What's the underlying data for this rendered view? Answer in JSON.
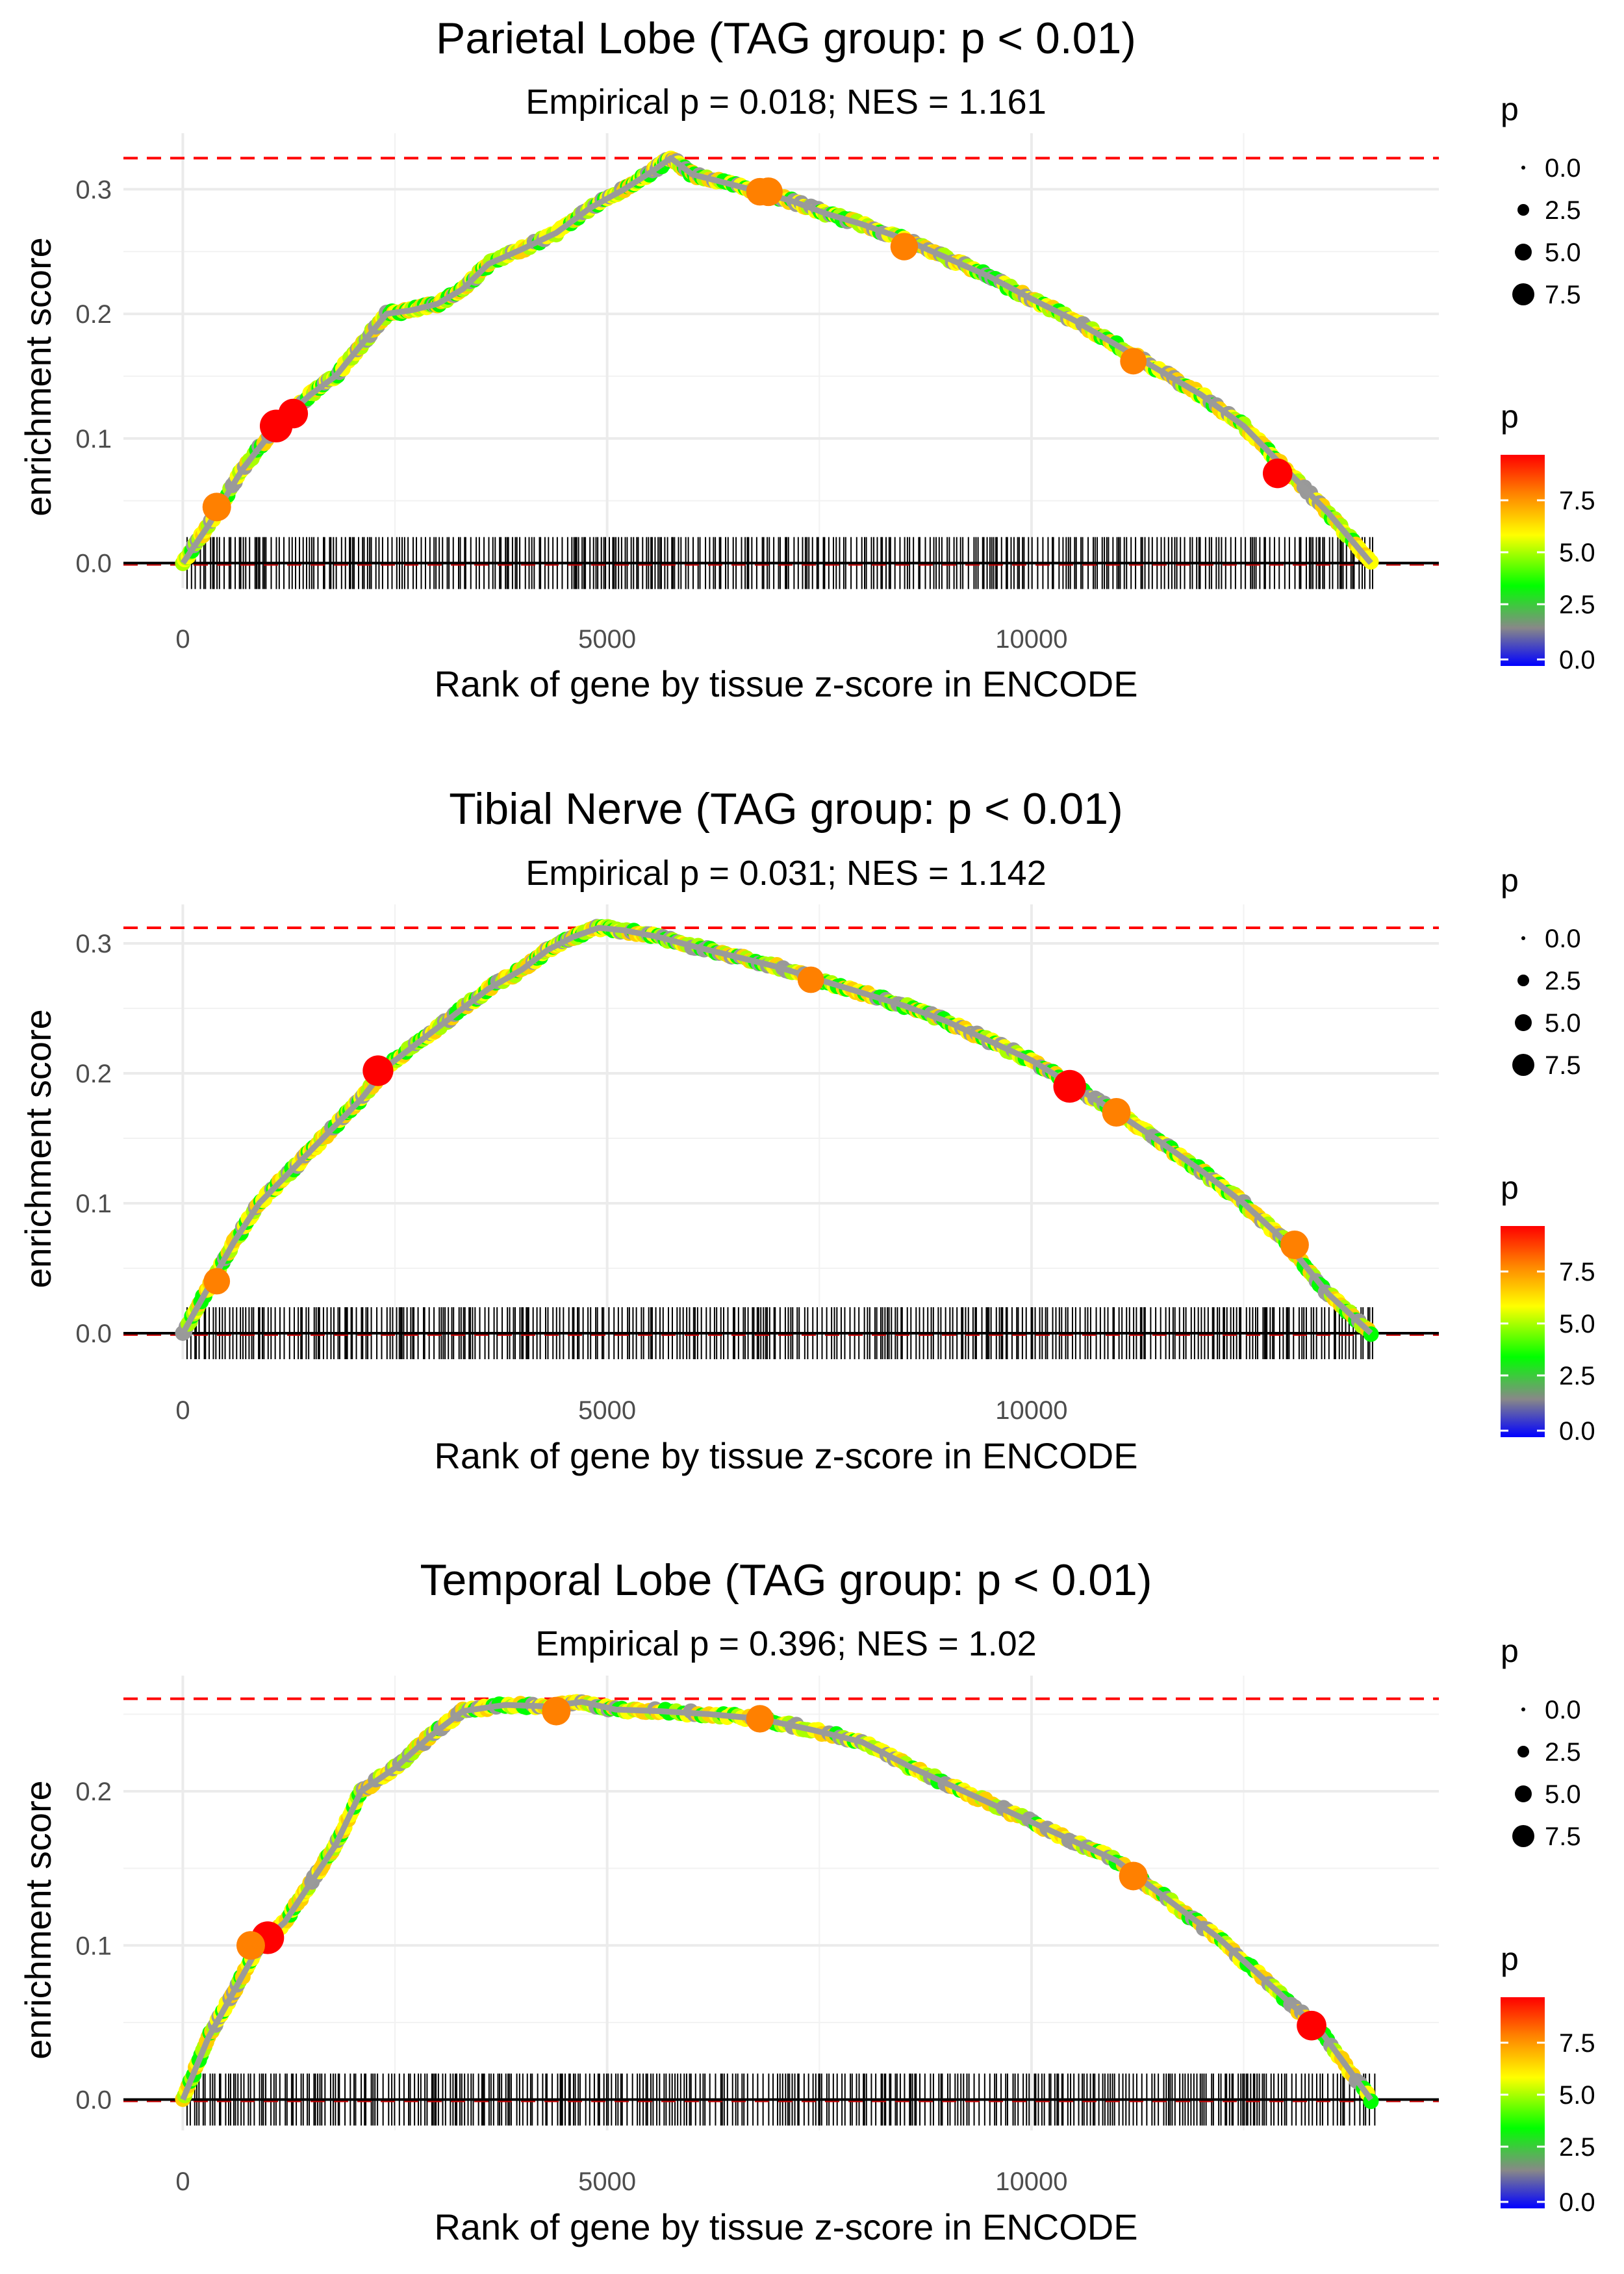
{
  "chart_data": [
    {
      "type": "line",
      "title": "Parietal Lobe (TAG group: p < 0.01)",
      "subtitle": "Empirical p = 0.018; NES = 1.161",
      "xlabel": "Rank of gene by tissue z-score in ENCODE",
      "ylabel": "enrichment score",
      "xlim": [
        -700,
        14800
      ],
      "ylim": [
        -0.02,
        0.345
      ],
      "x_ticks": [
        0,
        5000,
        10000
      ],
      "y_ticks": [
        0.0,
        0.1,
        0.2,
        0.3
      ],
      "max_es": 0.325,
      "grid": true,
      "x_end": 14050,
      "curve": [
        [
          0,
          0
        ],
        [
          300,
          0.03
        ],
        [
          700,
          0.075
        ],
        [
          1100,
          0.11
        ],
        [
          1500,
          0.135
        ],
        [
          1800,
          0.15
        ],
        [
          2100,
          0.175
        ],
        [
          2400,
          0.2
        ],
        [
          2700,
          0.203
        ],
        [
          3000,
          0.208
        ],
        [
          3300,
          0.22
        ],
        [
          3600,
          0.24
        ],
        [
          4000,
          0.252
        ],
        [
          4400,
          0.265
        ],
        [
          4800,
          0.285
        ],
        [
          5200,
          0.3
        ],
        [
          5500,
          0.313
        ],
        [
          5750,
          0.325
        ],
        [
          6000,
          0.312
        ],
        [
          6400,
          0.305
        ],
        [
          6800,
          0.298
        ],
        [
          7200,
          0.29
        ],
        [
          7600,
          0.28
        ],
        [
          8000,
          0.272
        ],
        [
          8500,
          0.26
        ],
        [
          9000,
          0.245
        ],
        [
          9500,
          0.23
        ],
        [
          10000,
          0.212
        ],
        [
          10500,
          0.195
        ],
        [
          11000,
          0.175
        ],
        [
          11500,
          0.155
        ],
        [
          12000,
          0.135
        ],
        [
          12500,
          0.11
        ],
        [
          13000,
          0.075
        ],
        [
          13500,
          0.04
        ],
        [
          14000,
          0
        ]
      ],
      "highlight_points": [
        [
          1100,
          0.11,
          9.5
        ],
        [
          1300,
          0.12,
          8.0
        ],
        [
          400,
          0.045,
          7.5
        ],
        [
          6800,
          0.298,
          7.0
        ],
        [
          8500,
          0.254,
          7.0
        ],
        [
          12900,
          0.072,
          8.0
        ],
        [
          11200,
          0.162,
          6.5
        ],
        [
          6900,
          0.298,
          7.5
        ]
      ],
      "size_legend": {
        "title": "p",
        "labels": [
          "0.0",
          "2.5",
          "5.0",
          "7.5"
        ]
      },
      "color_legend": {
        "title": "p",
        "labels": [
          "7.5",
          "5.0",
          "2.5",
          "0.0"
        ],
        "stops": [
          "#ff0000",
          "#ff8000",
          "#ffff00",
          "#00ff00",
          "#888888",
          "#0000ff"
        ]
      }
    },
    {
      "type": "line",
      "title": "Tibial Nerve (TAG group: p < 0.01)",
      "subtitle": "Empirical p = 0.031; NES = 1.142",
      "xlabel": "Rank of gene by tissue z-score in ENCODE",
      "ylabel": "enrichment score",
      "xlim": [
        -700,
        14800
      ],
      "ylim": [
        -0.02,
        0.33
      ],
      "x_ticks": [
        0,
        5000,
        10000
      ],
      "y_ticks": [
        0.0,
        0.1,
        0.2,
        0.3
      ],
      "max_es": 0.312,
      "grid": true,
      "x_end": 14050,
      "curve": [
        [
          0,
          0
        ],
        [
          300,
          0.035
        ],
        [
          600,
          0.07
        ],
        [
          900,
          0.1
        ],
        [
          1200,
          0.12
        ],
        [
          1500,
          0.14
        ],
        [
          1800,
          0.16
        ],
        [
          2100,
          0.18
        ],
        [
          2400,
          0.205
        ],
        [
          2800,
          0.225
        ],
        [
          3200,
          0.245
        ],
        [
          3600,
          0.265
        ],
        [
          4000,
          0.28
        ],
        [
          4300,
          0.295
        ],
        [
          4600,
          0.305
        ],
        [
          4900,
          0.312
        ],
        [
          5200,
          0.31
        ],
        [
          5600,
          0.305
        ],
        [
          6000,
          0.298
        ],
        [
          6500,
          0.29
        ],
        [
          7000,
          0.282
        ],
        [
          7500,
          0.272
        ],
        [
          8000,
          0.262
        ],
        [
          8500,
          0.252
        ],
        [
          9000,
          0.24
        ],
        [
          9500,
          0.225
        ],
        [
          10000,
          0.21
        ],
        [
          10500,
          0.19
        ],
        [
          11000,
          0.17
        ],
        [
          11500,
          0.148
        ],
        [
          12000,
          0.125
        ],
        [
          12500,
          0.1
        ],
        [
          13000,
          0.07
        ],
        [
          13500,
          0.03
        ],
        [
          14000,
          0
        ]
      ],
      "highlight_points": [
        [
          2300,
          0.202,
          8.5
        ],
        [
          10450,
          0.19,
          9.5
        ],
        [
          11000,
          0.17,
          7.5
        ],
        [
          13100,
          0.068,
          7.5
        ],
        [
          7400,
          0.272,
          6.5
        ],
        [
          400,
          0.04,
          6.5
        ]
      ],
      "size_legend": {
        "title": "p",
        "labels": [
          "0.0",
          "2.5",
          "5.0",
          "7.5"
        ]
      },
      "color_legend": {
        "title": "p",
        "labels": [
          "7.5",
          "5.0",
          "2.5",
          "0.0"
        ],
        "stops": [
          "#ff0000",
          "#ff8000",
          "#ffff00",
          "#00ff00",
          "#888888",
          "#0000ff"
        ]
      }
    },
    {
      "type": "line",
      "title": "Temporal Lobe (TAG group: p < 0.01)",
      "subtitle": "Empirical p = 0.396; NES = 1.02",
      "xlabel": "Rank of gene by tissue z-score in ENCODE",
      "ylabel": "enrichment score",
      "xlim": [
        -700,
        14800
      ],
      "ylim": [
        -0.02,
        0.275
      ],
      "x_ticks": [
        0,
        5000,
        10000
      ],
      "y_ticks": [
        0.0,
        0.1,
        0.2
      ],
      "max_es": 0.26,
      "grid": true,
      "x_end": 14050,
      "curve": [
        [
          0,
          0
        ],
        [
          300,
          0.04
        ],
        [
          600,
          0.07
        ],
        [
          900,
          0.1
        ],
        [
          1200,
          0.115
        ],
        [
          1500,
          0.14
        ],
        [
          1800,
          0.165
        ],
        [
          2100,
          0.2
        ],
        [
          2500,
          0.215
        ],
        [
          2900,
          0.235
        ],
        [
          3300,
          0.252
        ],
        [
          3800,
          0.256
        ],
        [
          4300,
          0.255
        ],
        [
          4700,
          0.258
        ],
        [
          5100,
          0.253
        ],
        [
          5600,
          0.252
        ],
        [
          6200,
          0.25
        ],
        [
          6800,
          0.247
        ],
        [
          7400,
          0.24
        ],
        [
          8000,
          0.232
        ],
        [
          8600,
          0.215
        ],
        [
          9200,
          0.2
        ],
        [
          9800,
          0.185
        ],
        [
          10400,
          0.17
        ],
        [
          11000,
          0.155
        ],
        [
          11600,
          0.13
        ],
        [
          12200,
          0.105
        ],
        [
          12800,
          0.075
        ],
        [
          13400,
          0.045
        ],
        [
          14000,
          0
        ]
      ],
      "highlight_points": [
        [
          1000,
          0.105,
          9.5
        ],
        [
          4400,
          0.252,
          7.5
        ],
        [
          6800,
          0.247,
          7.0
        ],
        [
          11200,
          0.145,
          7.5
        ],
        [
          13300,
          0.048,
          8.0
        ],
        [
          800,
          0.1,
          7.5
        ]
      ],
      "size_legend": {
        "title": "p",
        "labels": [
          "0.0",
          "2.5",
          "5.0",
          "7.5"
        ]
      },
      "color_legend": {
        "title": "p",
        "labels": [
          "7.5",
          "5.0",
          "2.5",
          "0.0"
        ],
        "stops": [
          "#ff0000",
          "#ff8000",
          "#ffff00",
          "#00ff00",
          "#888888",
          "#0000ff"
        ]
      }
    }
  ]
}
